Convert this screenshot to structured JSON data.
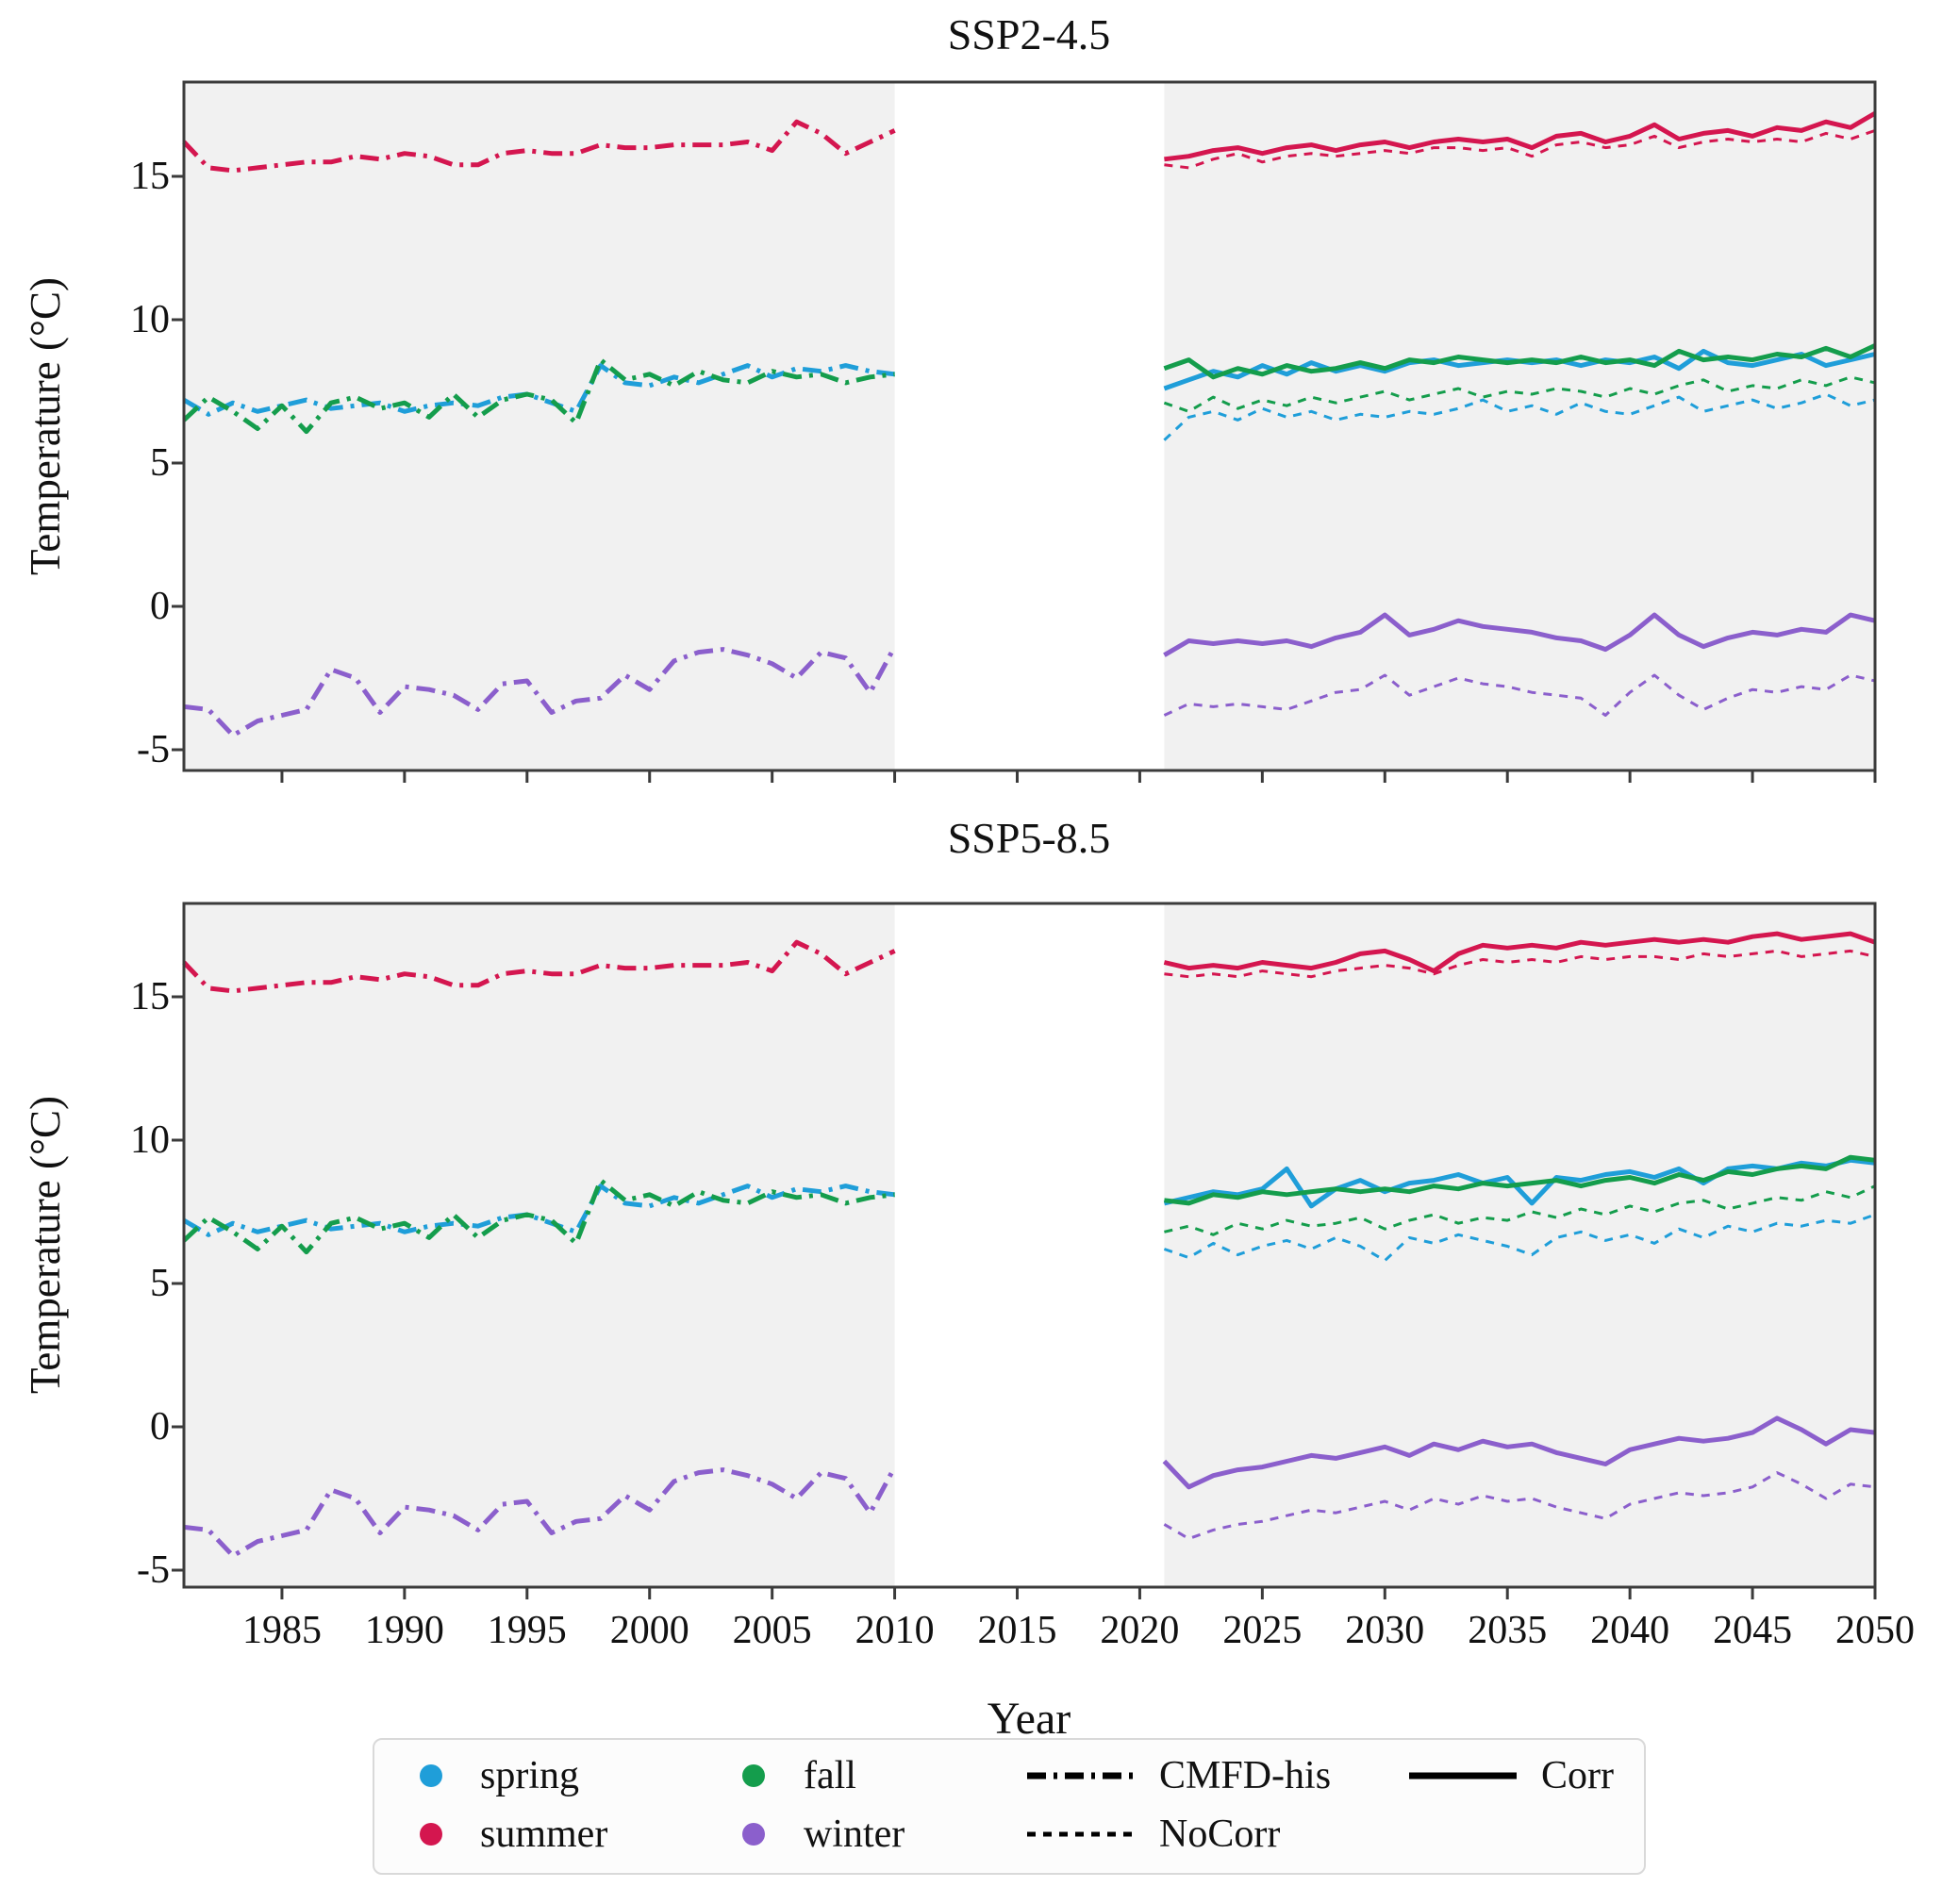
{
  "figure": {
    "background": "#ffffff",
    "shaded_band_color": "#f1f1f1",
    "frame_color": "#3b3b3b"
  },
  "season_colors": {
    "spring": "#1f9ed9",
    "summer": "#d4164f",
    "fall": "#149d4c",
    "winter": "#8b5fcc"
  },
  "dataset_styles": {
    "CMFD-his": "dashdot",
    "NoCorr": "dashed",
    "Corr": "solid"
  },
  "legend": {
    "season_items": [
      {
        "label": "spring",
        "color_key": "spring"
      },
      {
        "label": "summer",
        "color_key": "summer"
      },
      {
        "label": "fall",
        "color_key": "fall"
      },
      {
        "label": "winter",
        "color_key": "winter"
      }
    ],
    "style_items": [
      {
        "label": "CMFD-his",
        "style": "dashdot"
      },
      {
        "label": "NoCorr",
        "style": "dashed"
      },
      {
        "label": "Corr",
        "style": "solid"
      }
    ]
  },
  "chart_data": [
    {
      "type": "line",
      "title": "SSP2-4.5",
      "xlabel": "Year",
      "ylabel": "Temperature (°C)",
      "xlim": [
        1981,
        2050
      ],
      "ylim": [
        -5.7,
        18.3
      ],
      "yticks": [
        15,
        10,
        5,
        0,
        -5
      ],
      "xticks": [
        1985,
        1990,
        1995,
        2000,
        2005,
        2010,
        2015,
        2020,
        2025,
        2030,
        2035,
        2040,
        2045,
        2050
      ],
      "grid": false,
      "shaded_periods": [
        [
          1981,
          2010
        ],
        [
          2021,
          2050
        ]
      ],
      "series": [
        {
          "season": "spring",
          "dataset": "NoCorr",
          "start_year": 2021,
          "values": [
            5.8,
            6.6,
            6.8,
            6.5,
            6.9,
            6.6,
            6.8,
            6.5,
            6.7,
            6.6,
            6.8,
            6.7,
            6.9,
            7.2,
            6.8,
            7.0,
            6.7,
            7.1,
            6.8,
            6.7,
            7.0,
            7.3,
            6.8,
            7.0,
            7.2,
            6.9,
            7.1,
            7.4,
            7.0,
            7.2
          ]
        },
        {
          "season": "fall",
          "dataset": "NoCorr",
          "start_year": 2021,
          "values": [
            7.1,
            6.8,
            7.3,
            6.9,
            7.2,
            7.0,
            7.3,
            7.1,
            7.3,
            7.5,
            7.2,
            7.4,
            7.6,
            7.3,
            7.5,
            7.4,
            7.6,
            7.5,
            7.3,
            7.6,
            7.4,
            7.7,
            7.9,
            7.5,
            7.7,
            7.6,
            7.9,
            7.7,
            8.0,
            7.8
          ]
        },
        {
          "season": "summer",
          "dataset": "NoCorr",
          "start_year": 2021,
          "values": [
            15.4,
            15.3,
            15.6,
            15.8,
            15.5,
            15.7,
            15.8,
            15.7,
            15.8,
            15.9,
            15.8,
            16.0,
            16.0,
            15.9,
            16.0,
            15.7,
            16.1,
            16.2,
            16.0,
            16.1,
            16.4,
            16.0,
            16.2,
            16.3,
            16.2,
            16.3,
            16.2,
            16.5,
            16.3,
            16.6
          ]
        },
        {
          "season": "winter",
          "dataset": "NoCorr",
          "start_year": 2021,
          "values": [
            -3.8,
            -3.4,
            -3.5,
            -3.4,
            -3.5,
            -3.6,
            -3.3,
            -3.0,
            -2.9,
            -2.4,
            -3.1,
            -2.8,
            -2.5,
            -2.7,
            -2.8,
            -3.0,
            -3.1,
            -3.2,
            -3.8,
            -3.0,
            -2.4,
            -3.1,
            -3.6,
            -3.2,
            -2.9,
            -3.0,
            -2.8,
            -2.9,
            -2.4,
            -2.6
          ]
        },
        {
          "season": "spring",
          "dataset": "CMFD-his",
          "start_year": 1981,
          "values": [
            7.2,
            6.7,
            7.1,
            6.8,
            7.0,
            7.2,
            6.9,
            7.0,
            7.1,
            6.8,
            7.0,
            7.1,
            7.0,
            7.3,
            7.4,
            7.1,
            6.8,
            8.4,
            7.8,
            7.7,
            8.0,
            7.8,
            8.1,
            8.4,
            8.0,
            8.3,
            8.2,
            8.4,
            8.2,
            8.1
          ]
        },
        {
          "season": "fall",
          "dataset": "CMFD-his",
          "start_year": 1981,
          "values": [
            6.5,
            7.3,
            6.8,
            6.2,
            7.0,
            6.1,
            7.1,
            7.3,
            6.9,
            7.1,
            6.6,
            7.4,
            6.6,
            7.2,
            7.4,
            7.2,
            6.4,
            8.6,
            7.9,
            8.1,
            7.7,
            8.2,
            7.9,
            7.8,
            8.2,
            8.0,
            8.1,
            7.8,
            8.0,
            8.1
          ]
        },
        {
          "season": "summer",
          "dataset": "CMFD-his",
          "start_year": 1981,
          "values": [
            16.2,
            15.3,
            15.2,
            15.3,
            15.4,
            15.5,
            15.5,
            15.7,
            15.6,
            15.8,
            15.7,
            15.4,
            15.4,
            15.8,
            15.9,
            15.8,
            15.8,
            16.1,
            16.0,
            16.0,
            16.1,
            16.1,
            16.1,
            16.2,
            15.9,
            16.9,
            16.5,
            15.8,
            16.2,
            16.6
          ]
        },
        {
          "season": "winter",
          "dataset": "CMFD-his",
          "start_year": 1981,
          "values": [
            -3.5,
            -3.6,
            -4.5,
            -4.0,
            -3.8,
            -3.6,
            -2.2,
            -2.5,
            -3.7,
            -2.8,
            -2.9,
            -3.1,
            -3.6,
            -2.7,
            -2.6,
            -3.7,
            -3.3,
            -3.2,
            -2.4,
            -2.9,
            -1.9,
            -1.6,
            -1.5,
            -1.7,
            -2.0,
            -2.5,
            -1.6,
            -1.8,
            -3.0,
            -1.4
          ]
        },
        {
          "season": "spring",
          "dataset": "Corr",
          "start_year": 2021,
          "values": [
            7.6,
            7.9,
            8.2,
            8.0,
            8.4,
            8.1,
            8.5,
            8.2,
            8.4,
            8.2,
            8.5,
            8.6,
            8.4,
            8.5,
            8.6,
            8.5,
            8.6,
            8.4,
            8.6,
            8.5,
            8.7,
            8.3,
            8.9,
            8.5,
            8.4,
            8.6,
            8.8,
            8.4,
            8.6,
            8.8
          ]
        },
        {
          "season": "fall",
          "dataset": "Corr",
          "start_year": 2021,
          "values": [
            8.3,
            8.6,
            8.0,
            8.3,
            8.1,
            8.4,
            8.2,
            8.3,
            8.5,
            8.3,
            8.6,
            8.5,
            8.7,
            8.6,
            8.5,
            8.6,
            8.5,
            8.7,
            8.5,
            8.6,
            8.4,
            8.9,
            8.6,
            8.7,
            8.6,
            8.8,
            8.7,
            9.0,
            8.7,
            9.1
          ]
        },
        {
          "season": "summer",
          "dataset": "Corr",
          "start_year": 2021,
          "values": [
            15.6,
            15.7,
            15.9,
            16.0,
            15.8,
            16.0,
            16.1,
            15.9,
            16.1,
            16.2,
            16.0,
            16.2,
            16.3,
            16.2,
            16.3,
            16.0,
            16.4,
            16.5,
            16.2,
            16.4,
            16.8,
            16.3,
            16.5,
            16.6,
            16.4,
            16.7,
            16.6,
            16.9,
            16.7,
            17.2
          ]
        },
        {
          "season": "winter",
          "dataset": "Corr",
          "start_year": 2021,
          "values": [
            -1.7,
            -1.2,
            -1.3,
            -1.2,
            -1.3,
            -1.2,
            -1.4,
            -1.1,
            -0.9,
            -0.3,
            -1.0,
            -0.8,
            -0.5,
            -0.7,
            -0.8,
            -0.9,
            -1.1,
            -1.2,
            -1.5,
            -1.0,
            -0.3,
            -1.0,
            -1.4,
            -1.1,
            -0.9,
            -1.0,
            -0.8,
            -0.9,
            -0.3,
            -0.5
          ]
        }
      ]
    },
    {
      "type": "line",
      "title": "SSP5-8.5",
      "xlabel": "Year",
      "ylabel": "Temperature (°C)",
      "xlim": [
        1981,
        2050
      ],
      "ylim": [
        -5.6,
        18.3
      ],
      "yticks": [
        15,
        10,
        5,
        0,
        -5
      ],
      "xticks": [
        1985,
        1990,
        1995,
        2000,
        2005,
        2010,
        2015,
        2020,
        2025,
        2030,
        2035,
        2040,
        2045,
        2050
      ],
      "grid": false,
      "shaded_periods": [
        [
          1981,
          2010
        ],
        [
          2021,
          2050
        ]
      ],
      "series": [
        {
          "season": "spring",
          "dataset": "NoCorr",
          "start_year": 2021,
          "values": [
            6.2,
            5.9,
            6.4,
            6.0,
            6.3,
            6.5,
            6.2,
            6.6,
            6.3,
            5.8,
            6.6,
            6.4,
            6.7,
            6.5,
            6.3,
            6.0,
            6.6,
            6.8,
            6.5,
            6.7,
            6.4,
            6.9,
            6.6,
            7.0,
            6.8,
            7.1,
            7.0,
            7.2,
            7.1,
            7.4
          ]
        },
        {
          "season": "fall",
          "dataset": "NoCorr",
          "start_year": 2021,
          "values": [
            6.8,
            7.0,
            6.7,
            7.1,
            6.9,
            7.2,
            7.0,
            7.1,
            7.3,
            6.9,
            7.2,
            7.4,
            7.1,
            7.3,
            7.2,
            7.5,
            7.3,
            7.6,
            7.4,
            7.7,
            7.5,
            7.8,
            7.9,
            7.6,
            7.8,
            8.0,
            7.9,
            8.2,
            8.0,
            8.4
          ]
        },
        {
          "season": "summer",
          "dataset": "NoCorr",
          "start_year": 2021,
          "values": [
            15.8,
            15.7,
            15.8,
            15.7,
            15.9,
            15.8,
            15.7,
            15.9,
            16.0,
            16.1,
            16.0,
            15.8,
            16.1,
            16.3,
            16.2,
            16.3,
            16.2,
            16.4,
            16.3,
            16.4,
            16.4,
            16.3,
            16.5,
            16.4,
            16.5,
            16.6,
            16.4,
            16.5,
            16.6,
            16.4
          ]
        },
        {
          "season": "winter",
          "dataset": "NoCorr",
          "start_year": 2021,
          "values": [
            -3.4,
            -3.9,
            -3.6,
            -3.4,
            -3.3,
            -3.1,
            -2.9,
            -3.0,
            -2.8,
            -2.6,
            -2.9,
            -2.5,
            -2.7,
            -2.4,
            -2.6,
            -2.5,
            -2.8,
            -3.0,
            -3.2,
            -2.7,
            -2.5,
            -2.3,
            -2.4,
            -2.3,
            -2.1,
            -1.6,
            -2.0,
            -2.5,
            -2.0,
            -2.1
          ]
        },
        {
          "season": "spring",
          "dataset": "CMFD-his",
          "start_year": 1981,
          "values": [
            7.2,
            6.7,
            7.1,
            6.8,
            7.0,
            7.2,
            6.9,
            7.0,
            7.1,
            6.8,
            7.0,
            7.1,
            7.0,
            7.3,
            7.4,
            7.1,
            6.8,
            8.4,
            7.8,
            7.7,
            8.0,
            7.8,
            8.1,
            8.4,
            8.0,
            8.3,
            8.2,
            8.4,
            8.2,
            8.1
          ]
        },
        {
          "season": "fall",
          "dataset": "CMFD-his",
          "start_year": 1981,
          "values": [
            6.5,
            7.3,
            6.8,
            6.2,
            7.0,
            6.1,
            7.1,
            7.3,
            6.9,
            7.1,
            6.6,
            7.4,
            6.6,
            7.2,
            7.4,
            7.2,
            6.4,
            8.6,
            7.9,
            8.1,
            7.7,
            8.2,
            7.9,
            7.8,
            8.2,
            8.0,
            8.1,
            7.8,
            8.0,
            8.1
          ]
        },
        {
          "season": "summer",
          "dataset": "CMFD-his",
          "start_year": 1981,
          "values": [
            16.2,
            15.3,
            15.2,
            15.3,
            15.4,
            15.5,
            15.5,
            15.7,
            15.6,
            15.8,
            15.7,
            15.4,
            15.4,
            15.8,
            15.9,
            15.8,
            15.8,
            16.1,
            16.0,
            16.0,
            16.1,
            16.1,
            16.1,
            16.2,
            15.9,
            16.9,
            16.5,
            15.8,
            16.2,
            16.6
          ]
        },
        {
          "season": "winter",
          "dataset": "CMFD-his",
          "start_year": 1981,
          "values": [
            -3.5,
            -3.6,
            -4.5,
            -4.0,
            -3.8,
            -3.6,
            -2.2,
            -2.5,
            -3.7,
            -2.8,
            -2.9,
            -3.1,
            -3.6,
            -2.7,
            -2.6,
            -3.7,
            -3.3,
            -3.2,
            -2.4,
            -2.9,
            -1.9,
            -1.6,
            -1.5,
            -1.7,
            -2.0,
            -2.5,
            -1.6,
            -1.8,
            -3.0,
            -1.4
          ]
        },
        {
          "season": "spring",
          "dataset": "Corr",
          "start_year": 2021,
          "values": [
            7.8,
            8.0,
            8.2,
            8.1,
            8.3,
            9.0,
            7.7,
            8.3,
            8.6,
            8.2,
            8.5,
            8.6,
            8.8,
            8.5,
            8.7,
            7.8,
            8.7,
            8.6,
            8.8,
            8.9,
            8.7,
            9.0,
            8.5,
            9.0,
            9.1,
            9.0,
            9.2,
            9.1,
            9.3,
            9.2
          ]
        },
        {
          "season": "fall",
          "dataset": "Corr",
          "start_year": 2021,
          "values": [
            7.9,
            7.8,
            8.1,
            8.0,
            8.2,
            8.1,
            8.2,
            8.3,
            8.2,
            8.3,
            8.2,
            8.4,
            8.3,
            8.5,
            8.4,
            8.5,
            8.6,
            8.4,
            8.6,
            8.7,
            8.5,
            8.8,
            8.6,
            8.9,
            8.8,
            9.0,
            9.1,
            9.0,
            9.4,
            9.3
          ]
        },
        {
          "season": "summer",
          "dataset": "Corr",
          "start_year": 2021,
          "values": [
            16.2,
            16.0,
            16.1,
            16.0,
            16.2,
            16.1,
            16.0,
            16.2,
            16.5,
            16.6,
            16.3,
            15.9,
            16.5,
            16.8,
            16.7,
            16.8,
            16.7,
            16.9,
            16.8,
            16.9,
            17.0,
            16.9,
            17.0,
            16.9,
            17.1,
            17.2,
            17.0,
            17.1,
            17.2,
            16.9
          ]
        },
        {
          "season": "winter",
          "dataset": "Corr",
          "start_year": 2021,
          "values": [
            -1.2,
            -2.1,
            -1.7,
            -1.5,
            -1.4,
            -1.2,
            -1.0,
            -1.1,
            -0.9,
            -0.7,
            -1.0,
            -0.6,
            -0.8,
            -0.5,
            -0.7,
            -0.6,
            -0.9,
            -1.1,
            -1.3,
            -0.8,
            -0.6,
            -0.4,
            -0.5,
            -0.4,
            -0.2,
            0.3,
            -0.1,
            -0.6,
            -0.1,
            -0.2
          ]
        }
      ]
    }
  ]
}
